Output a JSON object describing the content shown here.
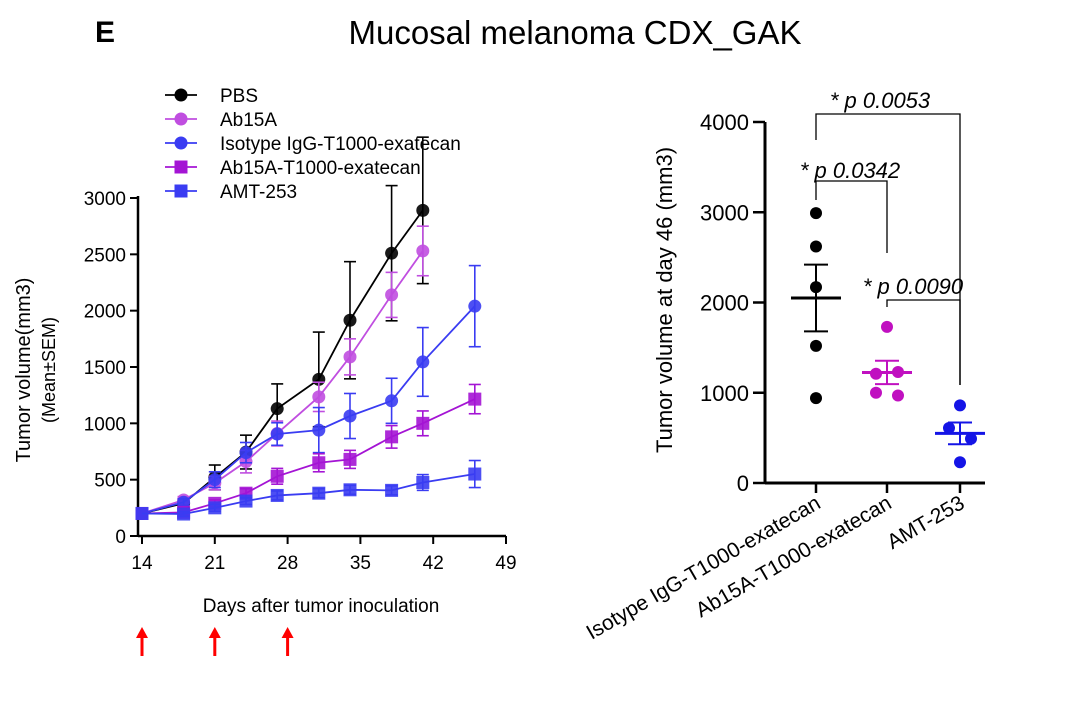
{
  "panel_label": "E",
  "figure_title": "Mucosal melanoma CDX_GAK",
  "colors": {
    "PBS": "#000000",
    "Ab15A": "#c04ee0",
    "Isotype IgG-T1000-exatecan": "#3a3cf2",
    "Ab15A-T1000-exatecan": "#a414d4",
    "AMT-253": "#3a3cf2",
    "arrow": "#ff0000",
    "dot_isotype": "#000000",
    "dot_ab15a_adc": "#c010c0",
    "dot_amt": "#1414e6"
  },
  "dosing_arrows_days": [
    14,
    21,
    28
  ],
  "chart_data": [
    {
      "type": "line",
      "title": "",
      "xlabel": "Days after tumor inoculation",
      "ylabel": "Tumor volume(mm3)",
      "ylabel_sub": "(Mean±SEM)",
      "xlim": [
        14,
        49
      ],
      "ylim": [
        0,
        3000
      ],
      "xticks": [
        "14",
        "21",
        "28",
        "35",
        "42",
        "49"
      ],
      "yticks": [
        "0",
        "500",
        "1000",
        "1500",
        "2000",
        "2500",
        "3000"
      ],
      "legend_position": "top-left",
      "grid": false,
      "series": [
        {
          "name": "PBS",
          "marker": "circle",
          "x": [
            14,
            18,
            21,
            24,
            27,
            31,
            34,
            38,
            41
          ],
          "y": [
            200,
            290,
            520,
            745,
            1130,
            1390,
            1915,
            2510,
            2890
          ],
          "sem": [
            0,
            40,
            110,
            150,
            220,
            420,
            520,
            600,
            650
          ]
        },
        {
          "name": "Ab15A",
          "marker": "circle",
          "x": [
            14,
            18,
            21,
            24,
            27,
            31,
            34,
            38,
            41
          ],
          "y": [
            200,
            320,
            470,
            660,
            910,
            1235,
            1590,
            2140,
            2530
          ],
          "sem": [
            0,
            30,
            60,
            100,
            110,
            130,
            160,
            200,
            220
          ]
        },
        {
          "name": "Isotype IgG-T1000-exatecan",
          "marker": "circle",
          "x": [
            14,
            18,
            21,
            24,
            27,
            31,
            34,
            38,
            41,
            46
          ],
          "y": [
            200,
            300,
            500,
            740,
            905,
            940,
            1065,
            1200,
            1545,
            2040
          ],
          "sem": [
            0,
            30,
            70,
            90,
            100,
            200,
            200,
            200,
            305,
            360
          ]
        },
        {
          "name": "Ab15A-T1000-exatecan",
          "marker": "square",
          "x": [
            14,
            18,
            21,
            24,
            27,
            31,
            34,
            38,
            41,
            46
          ],
          "y": [
            200,
            210,
            290,
            380,
            530,
            650,
            680,
            880,
            1000,
            1215
          ],
          "sem": [
            0,
            20,
            30,
            40,
            70,
            80,
            80,
            100,
            110,
            130
          ]
        },
        {
          "name": "AMT-253",
          "marker": "square",
          "x": [
            14,
            18,
            21,
            24,
            27,
            31,
            34,
            38,
            41,
            46
          ],
          "y": [
            200,
            195,
            250,
            310,
            360,
            380,
            410,
            405,
            475,
            550
          ],
          "sem": [
            0,
            20,
            30,
            30,
            40,
            40,
            40,
            40,
            70,
            120
          ]
        }
      ]
    },
    {
      "type": "scatter",
      "title": "",
      "ylabel": "Tumor volume at day 46 (mm3)",
      "ylim": [
        0,
        4000
      ],
      "yticks": [
        "0",
        "1000",
        "2000",
        "3000",
        "4000"
      ],
      "categories": [
        "Isotype IgG-T1000-exatecan",
        "Ab15A-T1000-exatecan",
        "AMT-253"
      ],
      "points": [
        [
          2990,
          2620,
          2170,
          1520,
          940
        ],
        [
          1730,
          1210,
          1230,
          1000,
          970
        ],
        [
          860,
          610,
          490,
          230
        ]
      ],
      "mean": [
        2050,
        1225,
        550
      ],
      "sem": [
        370,
        130,
        120
      ],
      "comparisons": [
        {
          "from": 0,
          "to": 2,
          "label": "* p 0.0053"
        },
        {
          "from": 0,
          "to": 1,
          "label": "* p 0.0342"
        },
        {
          "from": 1,
          "to": 2,
          "label": "* p 0.0090"
        }
      ]
    }
  ]
}
